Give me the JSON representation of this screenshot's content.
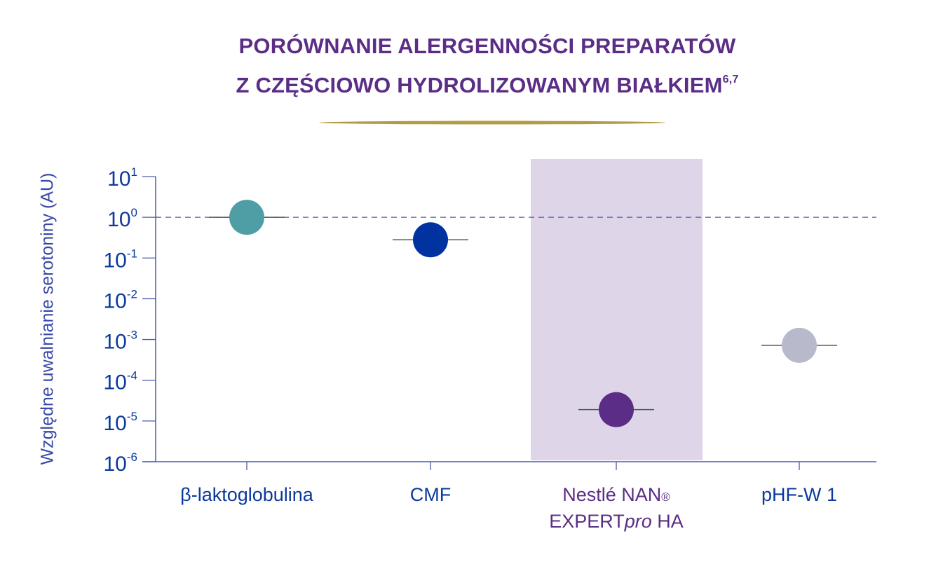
{
  "chart_data": {
    "type": "scatter",
    "title_line1": "PORÓWNANIE ALERGENNOŚCI PREPARATÓW",
    "title_line2": "Z CZĘŚCIOWO HYDROLIZOWANYM BIAŁKIEM",
    "title_superscript": "6,7",
    "ylabel": "Względne uwalnianie serotoniny (AU)",
    "yscale": "log",
    "ylim": [
      1e-06,
      10
    ],
    "yticks": [
      {
        "base": "10",
        "exp": "1",
        "value": 10
      },
      {
        "base": "10",
        "exp": "0",
        "value": 1
      },
      {
        "base": "10",
        "exp": "-1",
        "value": 0.1
      },
      {
        "base": "10",
        "exp": "-2",
        "value": 0.01
      },
      {
        "base": "10",
        "exp": "-3",
        "value": 0.001
      },
      {
        "base": "10",
        "exp": "-4",
        "value": 0.0001
      },
      {
        "base": "10",
        "exp": "-5",
        "value": 1e-05
      },
      {
        "base": "10",
        "exp": "-6",
        "value": 1e-06
      }
    ],
    "reference_line": 1,
    "categories": [
      {
        "label": "β-laktoglobulina",
        "label2": "",
        "value": 1,
        "color": "#4f9ea6",
        "label_color": "#0b3a9c"
      },
      {
        "label": "CMF",
        "label2": "",
        "value": 0.28,
        "color": "#0033a0",
        "label_color": "#0b3a9c"
      },
      {
        "label": "Nestlé NAN",
        "label_reg": "®",
        "label2a": "EXPERT",
        "label2b": "pro",
        "label2c": " HA",
        "value": 1.9e-05,
        "color": "#5b2d86",
        "label_color": "#5b2d86",
        "highlighted": true
      },
      {
        "label": "pHF-W 1",
        "label2": "",
        "value": 0.00072,
        "color": "#b9b9cc",
        "label_color": "#0b3a9c"
      }
    ],
    "highlight_color": "#ded6e8",
    "axis_color": "#4a5ab0",
    "tick_label_color": "#0b3a9c",
    "accent_line_color": "#b39b45"
  }
}
